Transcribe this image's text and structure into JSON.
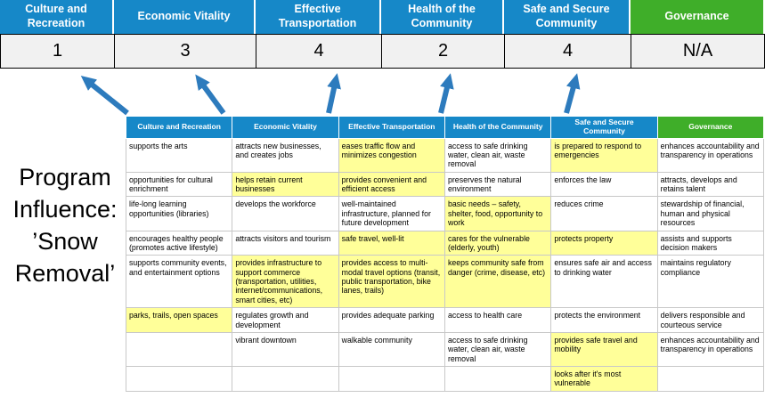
{
  "colors": {
    "pillar_blue": "#1688c8",
    "governance_green": "#3fae29",
    "highlight_yellow": "#ffff99",
    "arrow_blue": "#2d7bbd",
    "score_band_bg": "#f1f1f1"
  },
  "program_label": "Program\nInfluence:\n’Snow\nRemoval’",
  "pillars": [
    {
      "label": "Culture and Recreation",
      "score": "1"
    },
    {
      "label": "Economic Vitality",
      "score": "3"
    },
    {
      "label": "Effective Transportation",
      "score": "4"
    },
    {
      "label": "Health of the Community",
      "score": "2"
    },
    {
      "label": "Safe and Secure Community",
      "score": "4"
    },
    {
      "label": "Governance",
      "score": "N/A"
    }
  ],
  "matrix": {
    "headers": [
      "Culture and Recreation",
      "Economic Vitality",
      "Effective Transportation",
      "Health of the Community",
      "Safe and Secure Community",
      "Governance"
    ],
    "rows": [
      [
        {
          "text": "supports the arts",
          "highlight": false
        },
        {
          "text": "attracts new businesses, and creates jobs",
          "highlight": false
        },
        {
          "text": "eases traffic flow and minimizes congestion",
          "highlight": true
        },
        {
          "text": "access to safe drinking water, clean air, waste removal",
          "highlight": false
        },
        {
          "text": "is prepared to respond to emergencies",
          "highlight": true
        },
        {
          "text": "enhances accountability and transparency in operations",
          "highlight": false
        }
      ],
      [
        {
          "text": "opportunities for cultural enrichment",
          "highlight": false
        },
        {
          "text": "helps retain current businesses",
          "highlight": true
        },
        {
          "text": "provides convenient and efficient access",
          "highlight": true
        },
        {
          "text": "preserves the natural environment",
          "highlight": false
        },
        {
          "text": "enforces the law",
          "highlight": false
        },
        {
          "text": "attracts, develops and retains talent",
          "highlight": false
        }
      ],
      [
        {
          "text": "life-long learning opportunities (libraries)",
          "highlight": false
        },
        {
          "text": "develops the workforce",
          "highlight": false
        },
        {
          "text": "well-maintained infrastructure, planned for future development",
          "highlight": false
        },
        {
          "text": "basic needs – safety, shelter, food, opportunity to work",
          "highlight": true
        },
        {
          "text": "reduces crime",
          "highlight": false
        },
        {
          "text": "stewardship of financial, human and physical resources",
          "highlight": false
        }
      ],
      [
        {
          "text": "encourages healthy people (promotes active lifestyle)",
          "highlight": false
        },
        {
          "text": "attracts visitors and tourism",
          "highlight": false
        },
        {
          "text": "safe travel, well-lit",
          "highlight": true
        },
        {
          "text": "cares for the vulnerable (elderly, youth)",
          "highlight": true
        },
        {
          "text": "protects property",
          "highlight": true
        },
        {
          "text": "assists and supports decision makers",
          "highlight": false
        }
      ],
      [
        {
          "text": "supports community events, and entertainment options",
          "highlight": false
        },
        {
          "text": "provides infrastructure to support commerce (transportation, utilities, internet/communications, smart cities, etc)",
          "highlight": true
        },
        {
          "text": "provides access to multi-modal travel options (transit, public transportation, bike lanes, trails)",
          "highlight": true
        },
        {
          "text": "keeps community safe from danger (crime, disease, etc)",
          "highlight": true
        },
        {
          "text": "ensures safe air and access to drinking water",
          "highlight": false
        },
        {
          "text": "maintains regulatory compliance",
          "highlight": false
        }
      ],
      [
        {
          "text": "parks, trails, open spaces",
          "highlight": true
        },
        {
          "text": "regulates growth and development",
          "highlight": false
        },
        {
          "text": "provides adequate parking",
          "highlight": false
        },
        {
          "text": "access to health care",
          "highlight": false
        },
        {
          "text": "protects the environment",
          "highlight": false
        },
        {
          "text": "delivers responsible and courteous service",
          "highlight": false
        }
      ],
      [
        {
          "text": "",
          "highlight": false
        },
        {
          "text": "vibrant downtown",
          "highlight": false
        },
        {
          "text": "walkable community",
          "highlight": false
        },
        {
          "text": "access to safe drinking water, clean air, waste removal",
          "highlight": false
        },
        {
          "text": "provides safe travel and mobility",
          "highlight": true
        },
        {
          "text": "enhances accountability and transparency in operations",
          "highlight": false
        }
      ],
      [
        {
          "text": "",
          "highlight": false
        },
        {
          "text": "",
          "highlight": false
        },
        {
          "text": "",
          "highlight": false
        },
        {
          "text": "",
          "highlight": false
        },
        {
          "text": "looks after it's most vulnerable",
          "highlight": true
        },
        {
          "text": "",
          "highlight": false
        }
      ]
    ]
  }
}
